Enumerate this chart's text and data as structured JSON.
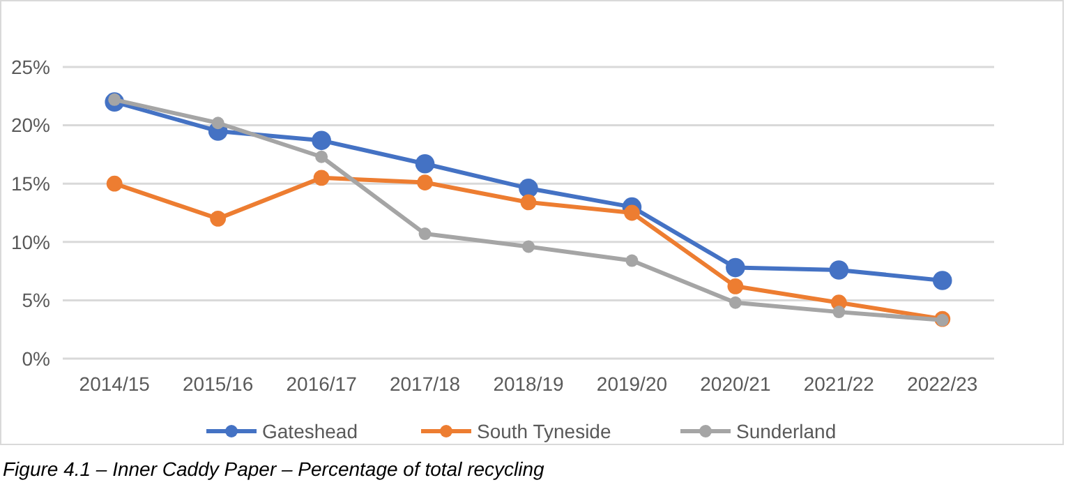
{
  "chart_data": {
    "type": "line",
    "categories": [
      "2014/15",
      "2015/16",
      "2016/17",
      "2017/18",
      "2018/19",
      "2019/20",
      "2020/21",
      "2021/22",
      "2022/23"
    ],
    "series": [
      {
        "name": "Gateshead",
        "color": "#4472c4",
        "values": [
          22.0,
          19.5,
          18.7,
          16.7,
          14.6,
          13.0,
          7.8,
          7.6,
          6.7
        ]
      },
      {
        "name": "South Tyneside",
        "color": "#ed7d31",
        "values": [
          15.0,
          12.0,
          15.5,
          15.1,
          13.4,
          12.5,
          6.2,
          4.8,
          3.4
        ]
      },
      {
        "name": "Sunderland",
        "color": "#a5a5a5",
        "values": [
          22.2,
          20.2,
          17.3,
          10.7,
          9.6,
          8.4,
          4.8,
          4.0,
          3.3
        ]
      }
    ],
    "ylim": [
      0,
      25
    ],
    "yticks": [
      {
        "value": 0,
        "label": "0%"
      },
      {
        "value": 5,
        "label": "5%"
      },
      {
        "value": 10,
        "label": "10%"
      },
      {
        "value": 15,
        "label": "15%"
      },
      {
        "value": 20,
        "label": "20%"
      },
      {
        "value": 25,
        "label": "25%"
      }
    ],
    "grid": "y",
    "legend": "bottom",
    "marker": "circle",
    "line_style": "solid",
    "annotations": [
      "Figure 4.1 – Inner Caddy Paper – Percentage of total recycling"
    ]
  }
}
